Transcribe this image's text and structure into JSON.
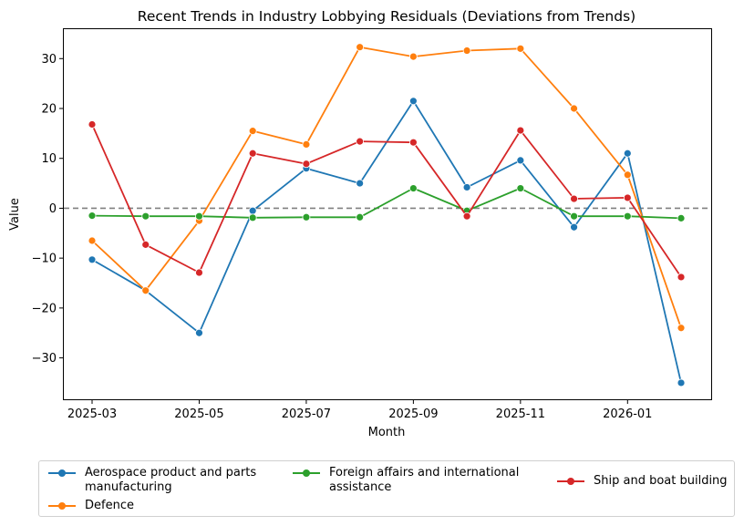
{
  "chart_data": {
    "type": "line",
    "title": "Recent Trends in Industry Lobbying Residuals (Deviations from Trends)",
    "xlabel": "Month",
    "ylabel": "Value",
    "x": [
      "2025-03",
      "2025-04",
      "2025-05",
      "2025-06",
      "2025-07",
      "2025-08",
      "2025-09",
      "2025-10",
      "2025-11",
      "2025-12",
      "2026-01",
      "2026-02"
    ],
    "x_tick_labels": [
      "2025-03",
      "2025-05",
      "2025-07",
      "2025-09",
      "2025-11",
      "2026-01"
    ],
    "y_ticks": [
      30,
      20,
      10,
      0,
      -10,
      -20,
      -30
    ],
    "y_tick_labels": [
      "30",
      "20",
      "10",
      "0",
      "−10",
      "−20",
      "−30"
    ],
    "ylim": [
      -38.3,
      35.9
    ],
    "reference_line": 0,
    "grid": false,
    "legend_position": "bottom",
    "series": [
      {
        "name": "Aerospace product and parts\nmanufacturing",
        "color": "#1f77b4",
        "values": [
          -10.3,
          -16.5,
          -25.0,
          -0.5,
          8.0,
          5.0,
          21.5,
          4.2,
          9.6,
          -3.8,
          11.0,
          -35.0
        ]
      },
      {
        "name": "Defence",
        "color": "#ff7f0e",
        "values": [
          -6.5,
          -16.5,
          -2.5,
          15.5,
          12.8,
          32.3,
          30.4,
          31.6,
          32.0,
          20.0,
          6.7,
          -24.0
        ]
      },
      {
        "name": "Foreign affairs and international\nassistance",
        "color": "#2ca02c",
        "values": [
          -1.5,
          -1.6,
          -1.6,
          -1.9,
          -1.8,
          -1.8,
          4.0,
          -0.5,
          4.0,
          -1.6,
          -1.6,
          -2.0
        ]
      },
      {
        "name": "Ship and boat building",
        "color": "#d62728",
        "values": [
          16.8,
          -7.3,
          -12.9,
          11.0,
          8.9,
          13.4,
          13.2,
          -1.6,
          15.6,
          1.9,
          2.1,
          -13.8
        ]
      }
    ]
  }
}
